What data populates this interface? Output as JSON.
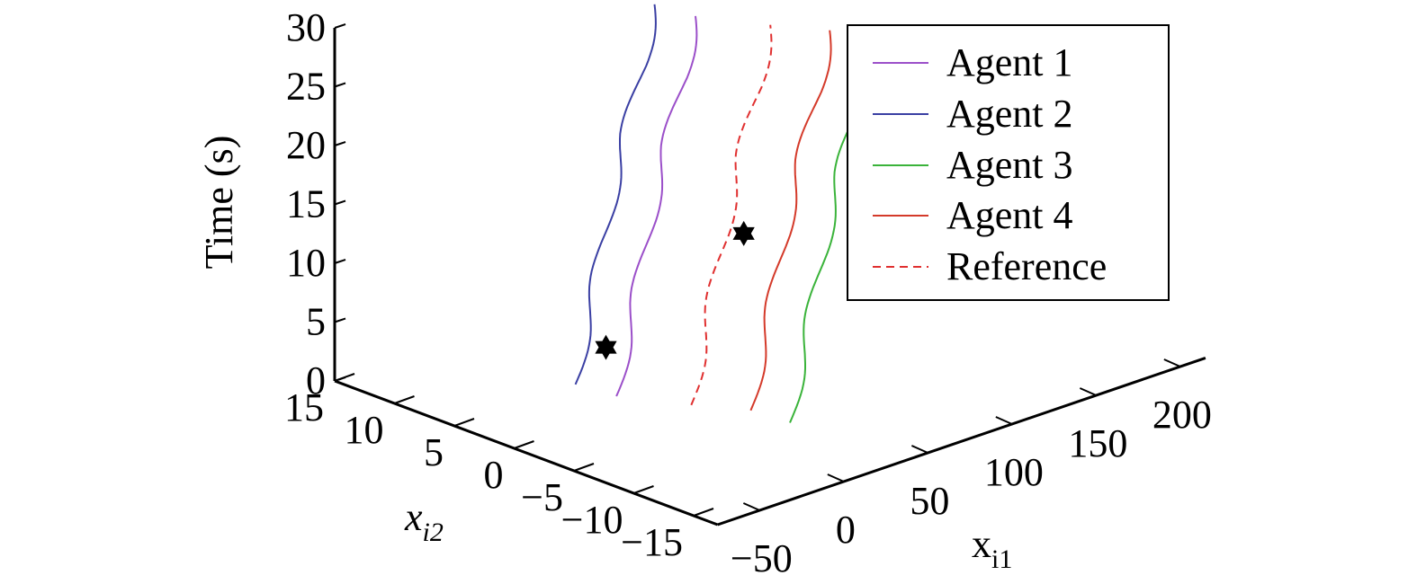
{
  "chart_data": {
    "type": "line",
    "projection": "3d",
    "grid": false,
    "legend_position": "top-right",
    "axes": {
      "x": {
        "label": "x",
        "label_subscript": "i1",
        "ticks": [
          -50,
          0,
          50,
          100,
          150,
          200
        ],
        "tick_labels": [
          "−50",
          "0",
          "50",
          "100",
          "150",
          "200"
        ]
      },
      "y": {
        "label": "x",
        "label_subscript": "i2",
        "ticks": [
          15,
          10,
          5,
          0,
          -5,
          -10,
          -15
        ],
        "tick_labels": [
          "15",
          "10",
          "5",
          "0",
          "−5",
          "−10",
          "−15"
        ]
      },
      "z": {
        "label": "Time (s)",
        "ticks": [
          0,
          5,
          10,
          15,
          20,
          25,
          30
        ],
        "tick_labels": [
          "0",
          "5",
          "10",
          "15",
          "20",
          "25",
          "30"
        ]
      }
    },
    "series": [
      {
        "name": "Agent 1",
        "color": "#9b4fc9",
        "dash": false,
        "points": [
          [
            0,
            2,
            0
          ],
          [
            7,
            2,
            5
          ],
          [
            15,
            2,
            10
          ],
          [
            22,
            2,
            15
          ],
          [
            30,
            2,
            20
          ],
          [
            40,
            2,
            25
          ],
          [
            47,
            2,
            30
          ]
        ]
      },
      {
        "name": "Agent 2",
        "color": "#3a3fa3",
        "dash": false,
        "points": [
          [
            -3,
            5,
            0
          ],
          [
            4,
            5,
            5
          ],
          [
            12,
            5,
            10
          ],
          [
            19,
            5,
            15
          ],
          [
            27,
            5,
            20
          ],
          [
            37,
            5,
            25
          ],
          [
            44,
            5,
            30
          ]
        ]
      },
      {
        "name": "Agent 3",
        "color": "#3ab33a",
        "dash": false,
        "points": [
          [
            32,
            -8,
            0
          ],
          [
            39,
            -8,
            5
          ],
          [
            47,
            -8,
            10
          ],
          [
            54,
            -8,
            15
          ],
          [
            62,
            -8,
            20
          ],
          [
            72,
            -8,
            25
          ],
          [
            79,
            -8,
            30
          ]
        ]
      },
      {
        "name": "Agent 4",
        "color": "#d43a2a",
        "dash": false,
        "points": [
          [
            30,
            -5,
            0
          ],
          [
            37,
            -5,
            5
          ],
          [
            45,
            -5,
            10
          ],
          [
            52,
            -5,
            15
          ],
          [
            60,
            -5,
            20
          ],
          [
            70,
            -5,
            25
          ],
          [
            77,
            -5,
            30
          ]
        ]
      },
      {
        "name": "Reference",
        "color": "#e03030",
        "dash": true,
        "points": [
          [
            16,
            -2,
            0
          ],
          [
            23,
            -2,
            5
          ],
          [
            31,
            -2,
            10
          ],
          [
            38,
            -2,
            15
          ],
          [
            46,
            -2,
            20
          ],
          [
            56,
            -2,
            25
          ],
          [
            63,
            -2,
            30
          ]
        ]
      }
    ],
    "markers": [
      {
        "shape": "hexagram",
        "color": "#000000",
        "point": [
          8,
          4,
          3
        ]
      },
      {
        "shape": "hexagram",
        "color": "#000000",
        "point": [
          33,
          -4,
          14.5
        ]
      }
    ]
  }
}
